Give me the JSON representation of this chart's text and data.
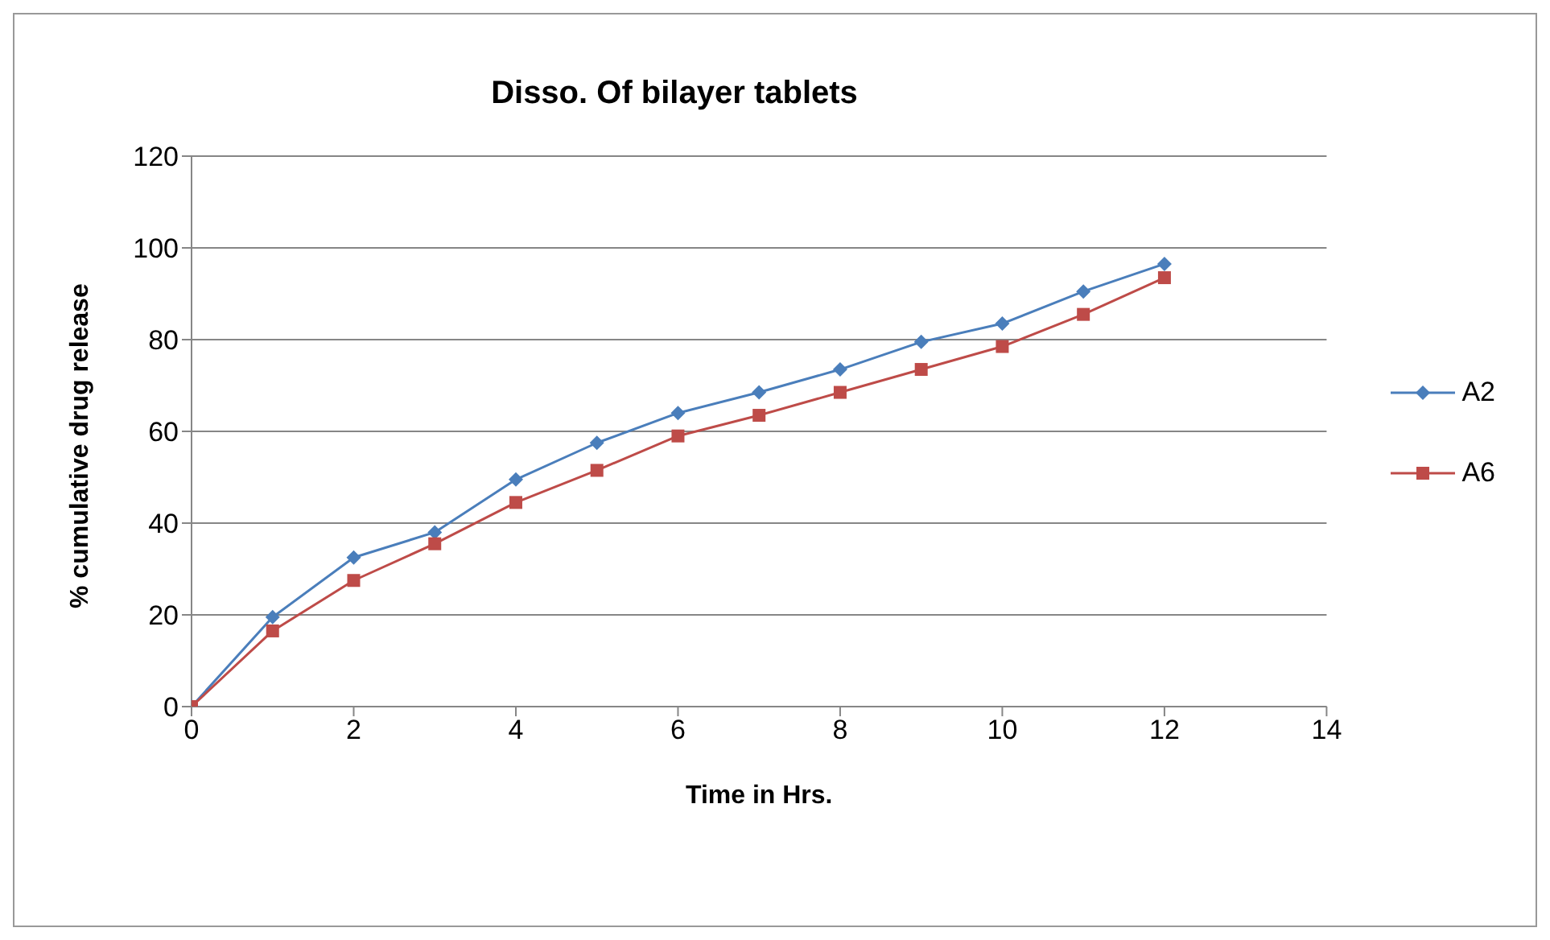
{
  "chart_data": {
    "type": "line",
    "title": "Disso. Of bilayer tablets",
    "xlabel": "Time in Hrs.",
    "ylabel": "% cumulative drug release",
    "x": [
      0,
      1,
      2,
      3,
      4,
      5,
      6,
      7,
      8,
      9,
      10,
      11,
      12
    ],
    "series": [
      {
        "name": "A2",
        "color": "#4a7ebb",
        "marker": "diamond",
        "values": [
          0,
          19.5,
          32.5,
          38,
          49.5,
          57.5,
          64,
          68.5,
          73.5,
          79.5,
          83.5,
          90.5,
          96.5
        ]
      },
      {
        "name": "A6",
        "color": "#be4b48",
        "marker": "square",
        "values": [
          0,
          16.5,
          27.5,
          35.5,
          44.5,
          51.5,
          59,
          63.5,
          68.5,
          73.5,
          78.5,
          85.5,
          93.5
        ]
      }
    ],
    "xlim": [
      0,
      14
    ],
    "xticks": [
      0,
      2,
      4,
      6,
      8,
      10,
      12,
      14
    ],
    "ylim": [
      0,
      120
    ],
    "yticks": [
      0,
      20,
      40,
      60,
      80,
      100,
      120
    ],
    "grid": "y",
    "legend": "right"
  }
}
